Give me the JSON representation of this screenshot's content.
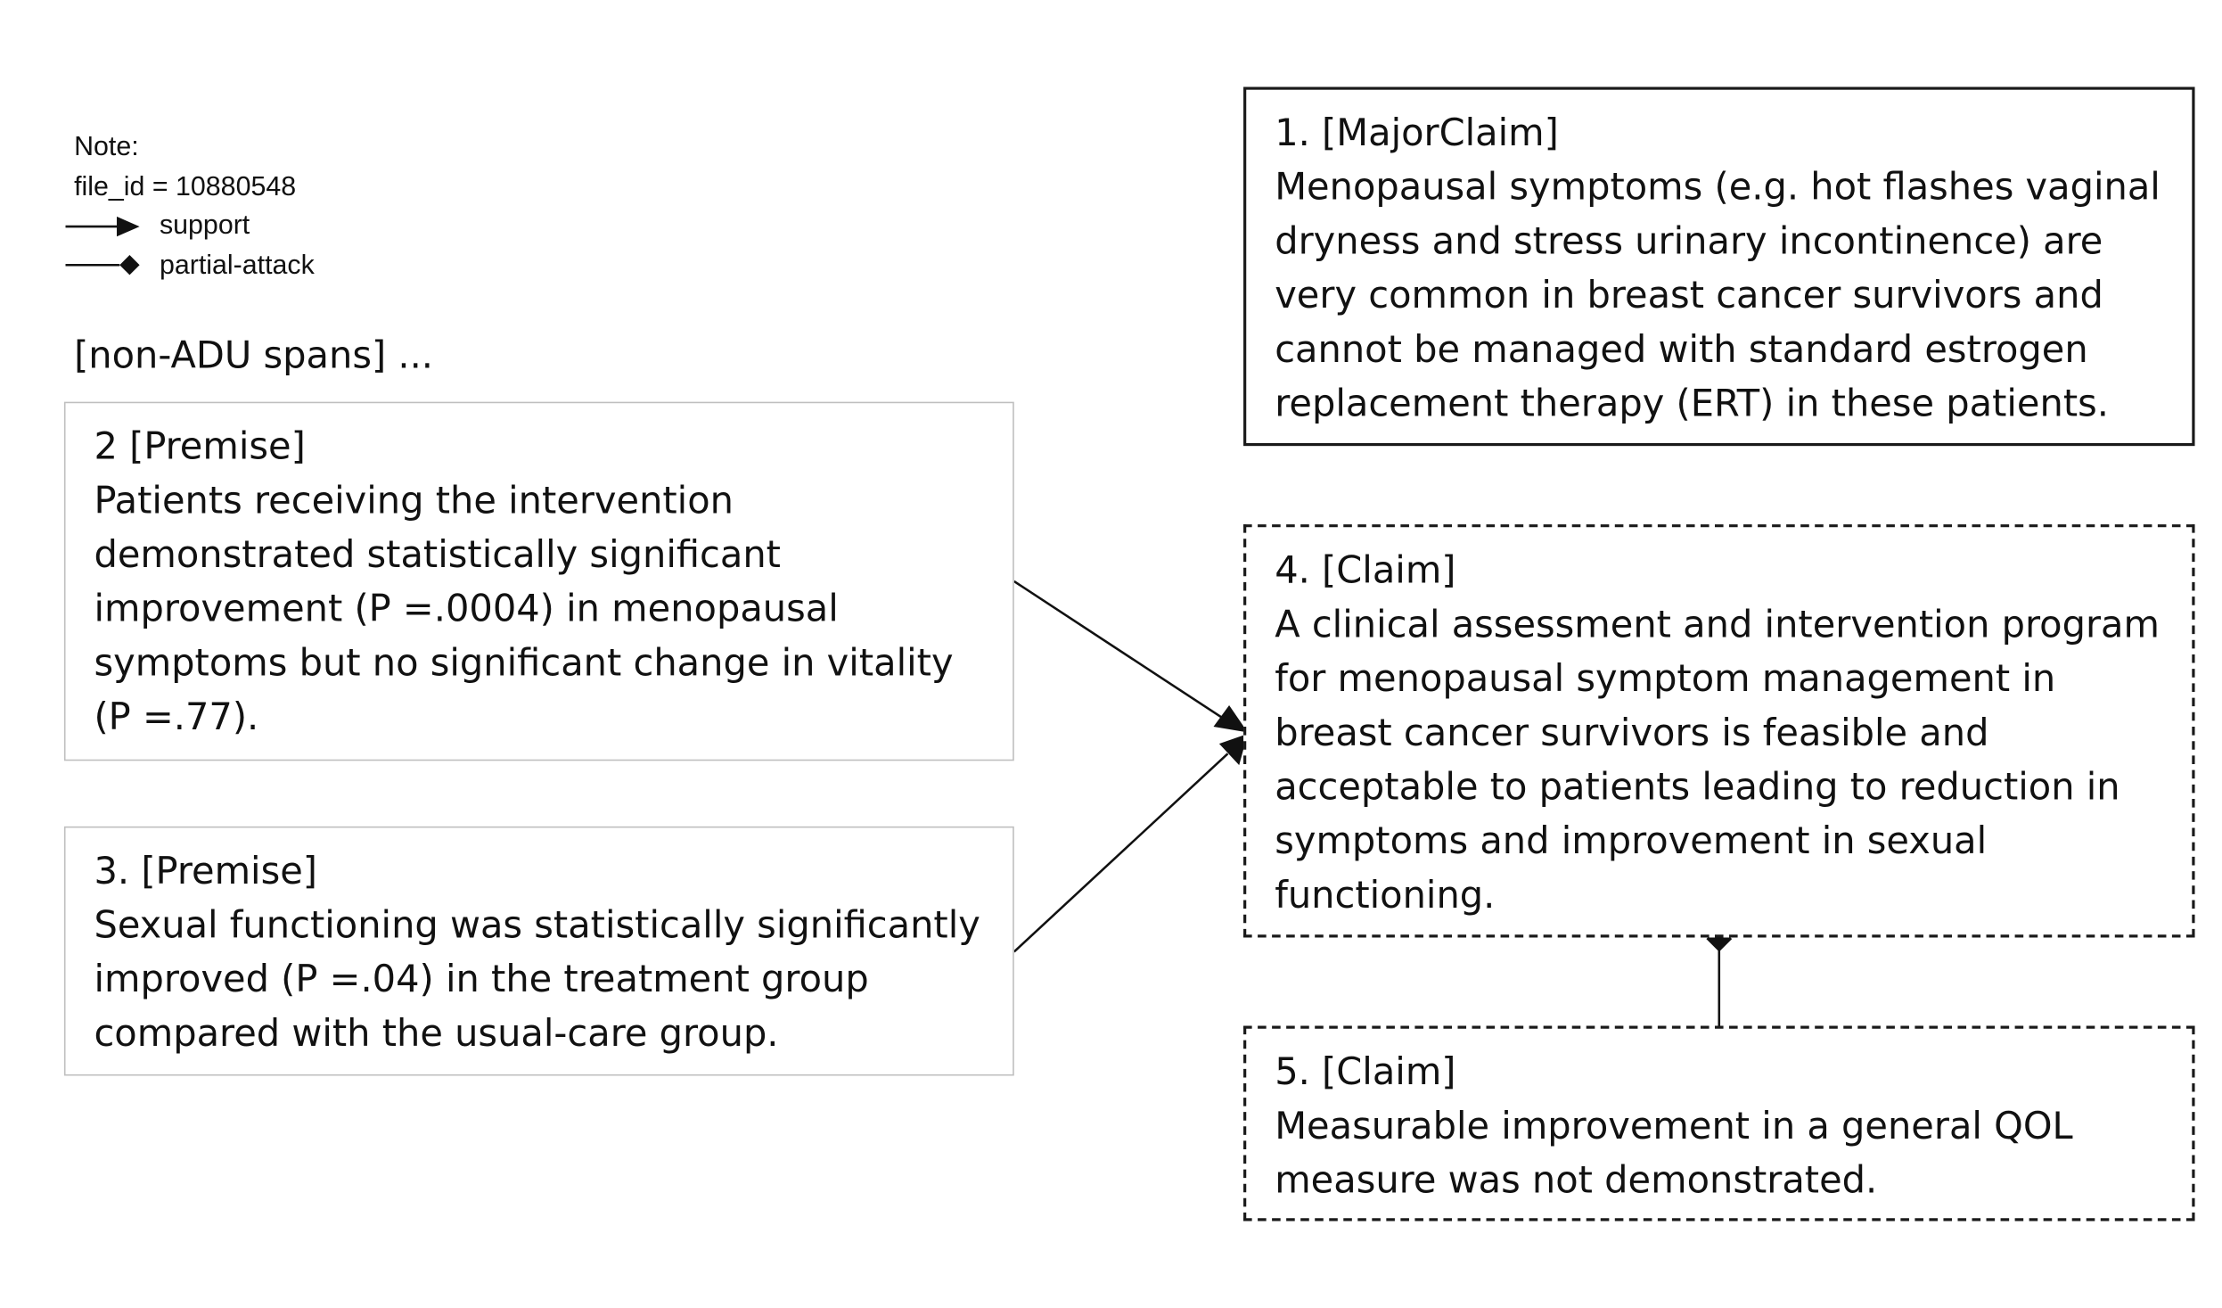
{
  "legend": {
    "note_label": "Note:",
    "file_id": "file_id = 10880548",
    "support_label": "support",
    "attack_label": "partial-attack"
  },
  "non_adu": "[non-ADU spans] ...",
  "nodes": {
    "n1": {
      "header": "1. [MajorClaim]",
      "text": "Menopausal symptoms (e.g. hot flashes vaginal dryness and stress urinary incontinence) are very common in breast cancer survivors and cannot be managed with standard estrogen replacement therapy (ERT) in these patients."
    },
    "n2": {
      "header": "2 [Premise]",
      "text": "Patients receiving the intervention demonstrated statistically significant improvement (P =.0004) in menopausal symptoms but no significant change in vitality (P =.77)."
    },
    "n3": {
      "header": "3. [Premise]",
      "text": "Sexual functioning was statistically significantly improved (P =.04) in the treatment group compared with the usual-care group."
    },
    "n4": {
      "header": "4. [Claim]",
      "text": "A clinical assessment and intervention program for menopausal symptom management in breast cancer survivors is feasible and acceptable to patients leading to reduction in symptoms and improvement in sexual functioning."
    },
    "n5": {
      "header": "5. [Claim]",
      "text": "Measurable improvement in a general QOL measure was not demonstrated."
    }
  },
  "edges": [
    {
      "from": "2",
      "to": "4",
      "relation": "support"
    },
    {
      "from": "3",
      "to": "4",
      "relation": "support"
    },
    {
      "from": "5",
      "to": "4",
      "relation": "partial-attack"
    }
  ],
  "colors": {
    "premise_border": "#bfbfbf",
    "claim_border": "#1a1a1a",
    "edge": "#111111"
  }
}
